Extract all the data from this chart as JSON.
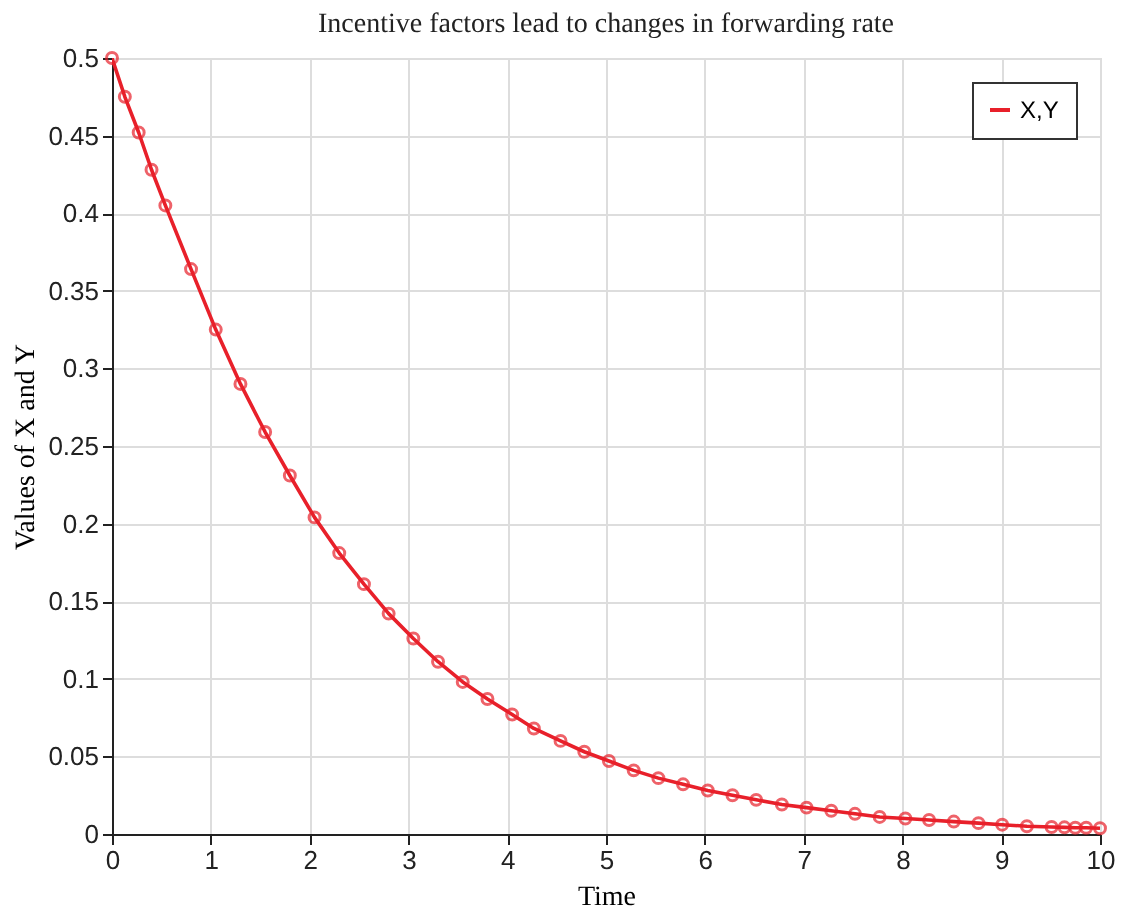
{
  "chart_data": {
    "type": "line",
    "title": "Incentive factors lead to changes in forwarding rate",
    "xlabel": "Time",
    "ylabel": "Values of X and Y",
    "x": [
      0,
      0.13,
      0.27,
      0.4,
      0.54,
      0.8,
      1.05,
      1.3,
      1.55,
      1.8,
      2.05,
      2.3,
      2.55,
      2.8,
      3.05,
      3.3,
      3.55,
      3.8,
      4.05,
      4.27,
      4.54,
      4.78,
      5.03,
      5.28,
      5.53,
      5.78,
      6.03,
      6.28,
      6.52,
      6.78,
      7.03,
      7.28,
      7.52,
      7.77,
      8.03,
      8.27,
      8.52,
      8.77,
      9.01,
      9.26,
      9.51,
      9.64,
      9.75,
      9.86,
      10
    ],
    "series": [
      {
        "name": "X,Y",
        "color": "#e8202a",
        "values": [
          0.5,
          0.475,
          0.452,
          0.428,
          0.405,
          0.364,
          0.325,
          0.29,
          0.259,
          0.231,
          0.204,
          0.181,
          0.161,
          0.142,
          0.126,
          0.111,
          0.098,
          0.087,
          0.077,
          0.068,
          0.06,
          0.053,
          0.047,
          0.041,
          0.036,
          0.032,
          0.028,
          0.025,
          0.022,
          0.019,
          0.017,
          0.015,
          0.013,
          0.011,
          0.01,
          0.009,
          0.008,
          0.007,
          0.006,
          0.005,
          0.0045,
          0.0043,
          0.004,
          0.004,
          0.0037
        ]
      }
    ],
    "xlim": [
      0,
      10
    ],
    "xticks": [
      0,
      1,
      2,
      3,
      4,
      5,
      6,
      7,
      8,
      9,
      10
    ],
    "ylim": [
      0,
      0.5
    ],
    "yticks": [
      0,
      0.05,
      0.1,
      0.15,
      0.2,
      0.25,
      0.3,
      0.35,
      0.4,
      0.45,
      0.5
    ],
    "grid": true,
    "legend": "top right",
    "marker": "circle",
    "line_style": "solid"
  }
}
